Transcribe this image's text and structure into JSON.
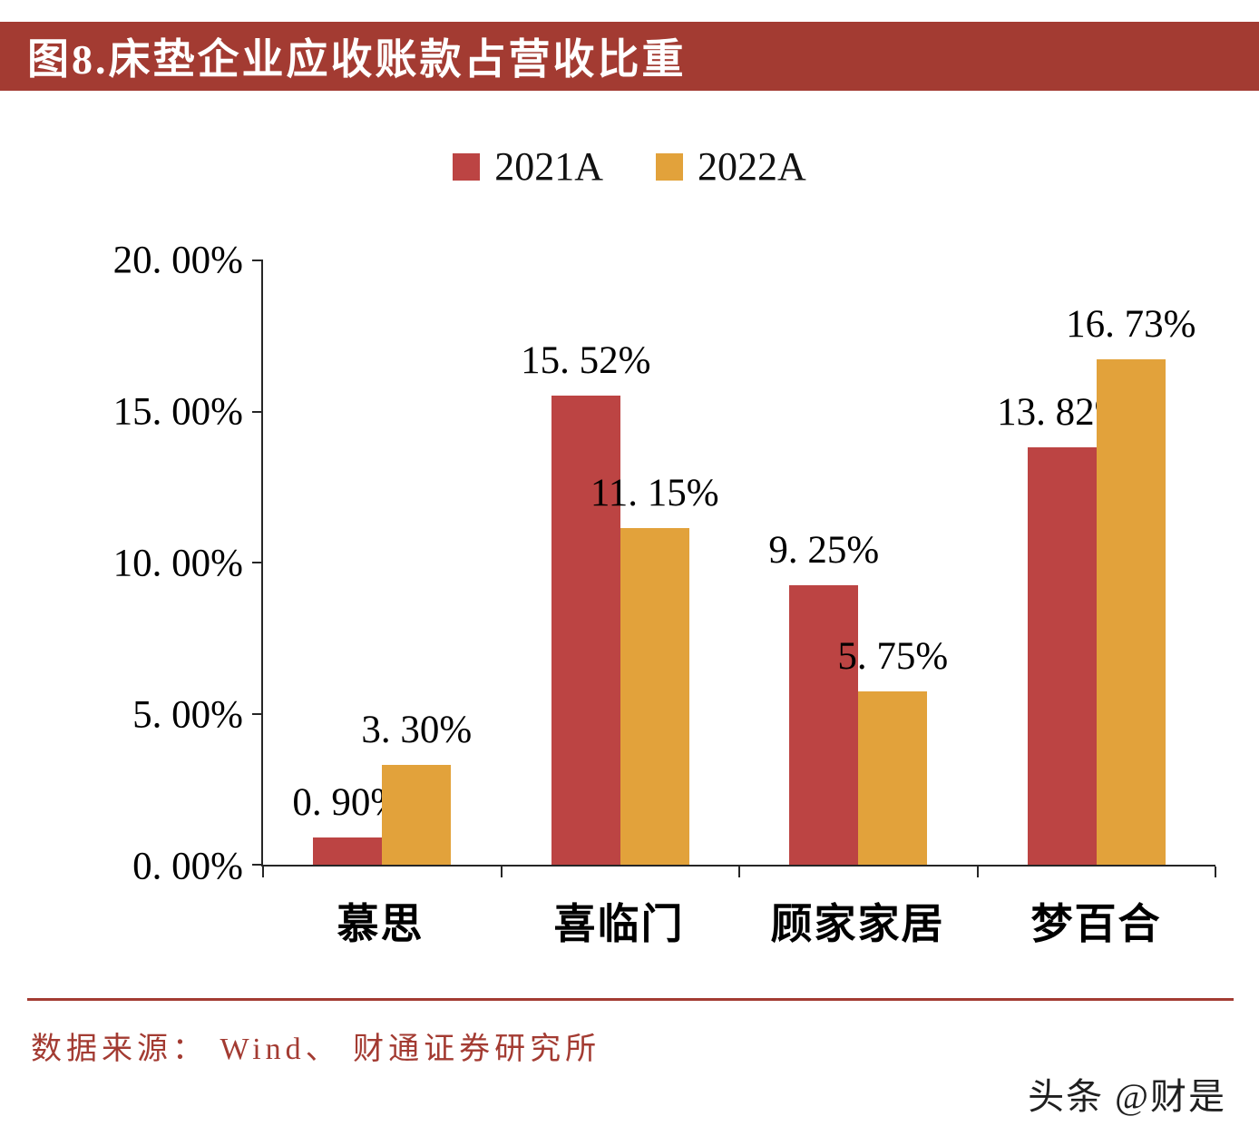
{
  "header": {
    "title": "图8.床垫企业应收账款占营收比重"
  },
  "chart_data": {
    "type": "bar",
    "title": "图8.床垫企业应收账款占营收比重",
    "categories": [
      "慕思",
      "喜临门",
      "顾家家居",
      "梦百合"
    ],
    "series": [
      {
        "name": "2021A",
        "color": "#BC4443",
        "values": [
          0.9,
          15.52,
          9.25,
          13.82
        ],
        "labels": [
          "0. 90%",
          "15. 52%",
          "9. 25%",
          "13. 82%"
        ]
      },
      {
        "name": "2022A",
        "color": "#E2A23B",
        "values": [
          3.3,
          11.15,
          5.75,
          16.73
        ],
        "labels": [
          "3. 30%",
          "11. 15%",
          "5. 75%",
          "16. 73%"
        ]
      }
    ],
    "xlabel": "",
    "ylabel": "",
    "ylim": [
      0,
      20
    ],
    "yticks": [
      "20. 00%",
      "15. 00%",
      "10. 00%",
      "5. 00%",
      "0. 00%"
    ],
    "legend_position": "top",
    "grid": false
  },
  "colors": {
    "header_bg": "#A33B32",
    "divider": "#A33B32",
    "source_text": "#A33B32",
    "axis_line": "#262626"
  },
  "footer": {
    "source": "数据来源： Wind、 财通证券研究所",
    "watermark": "头条 @财是"
  }
}
